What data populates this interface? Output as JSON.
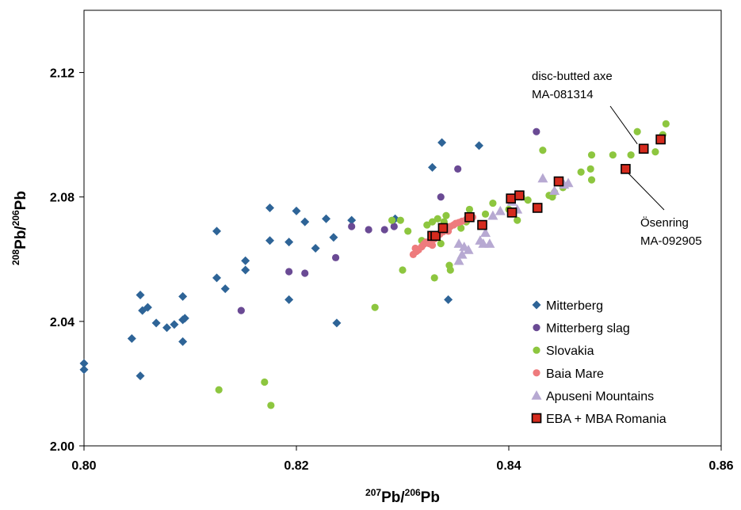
{
  "chart_data": {
    "type": "scatter",
    "xlabel": {
      "sup": "207",
      "main": "Pb/",
      "sup2": "206",
      "main2": "Pb"
    },
    "ylabel": {
      "sup": "208",
      "main": "Pb/",
      "sup2": "206",
      "main2": "Pb"
    },
    "xlim": [
      0.8,
      0.86
    ],
    "ylim": [
      2.0,
      2.14
    ],
    "xticks": [
      "0.80",
      "0.82",
      "0.84",
      "0.86"
    ],
    "yticks": [
      "2.00",
      "2.04",
      "2.08",
      "2.12"
    ],
    "grid": false,
    "legend_position": "bottom-right",
    "series": [
      {
        "name": "Mitterberg",
        "marker": "diamond",
        "color": "#2e6497",
        "points": [
          [
            0.8,
            2.0265
          ],
          [
            0.8,
            2.0245
          ],
          [
            0.8045,
            2.0345
          ],
          [
            0.8053,
            2.0485
          ],
          [
            0.8053,
            2.0225
          ],
          [
            0.8055,
            2.0435
          ],
          [
            0.806,
            2.0445
          ],
          [
            0.8068,
            2.0395
          ],
          [
            0.8078,
            2.038
          ],
          [
            0.8085,
            2.039
          ],
          [
            0.8093,
            2.048
          ],
          [
            0.8093,
            2.0405
          ],
          [
            0.8095,
            2.041
          ],
          [
            0.8093,
            2.0335
          ],
          [
            0.8125,
            2.069
          ],
          [
            0.8125,
            2.054
          ],
          [
            0.8133,
            2.0505
          ],
          [
            0.8152,
            2.0595
          ],
          [
            0.8152,
            2.0565
          ],
          [
            0.8175,
            2.0765
          ],
          [
            0.8175,
            2.066
          ],
          [
            0.8193,
            2.0655
          ],
          [
            0.8193,
            2.047
          ],
          [
            0.82,
            2.0755
          ],
          [
            0.8208,
            2.072
          ],
          [
            0.8218,
            2.0635
          ],
          [
            0.8228,
            2.073
          ],
          [
            0.8235,
            2.067
          ],
          [
            0.8238,
            2.0395
          ],
          [
            0.8252,
            2.0725
          ],
          [
            0.8293,
            2.073
          ],
          [
            0.8328,
            2.0895
          ],
          [
            0.8337,
            2.0975
          ],
          [
            0.8343,
            2.047
          ],
          [
            0.8372,
            2.0965
          ]
        ]
      },
      {
        "name": "Mitterberg slag",
        "marker": "circle",
        "color": "#6a4a94",
        "points": [
          [
            0.8148,
            2.0435
          ],
          [
            0.8193,
            2.056
          ],
          [
            0.8208,
            2.0555
          ],
          [
            0.8237,
            2.0605
          ],
          [
            0.8252,
            2.0705
          ],
          [
            0.8268,
            2.0695
          ],
          [
            0.8283,
            2.0695
          ],
          [
            0.8292,
            2.0705
          ],
          [
            0.8336,
            2.08
          ],
          [
            0.8352,
            2.089
          ],
          [
            0.8426,
            2.101
          ]
        ]
      },
      {
        "name": "Slovakia",
        "marker": "circle",
        "color": "#8dc63f",
        "points": [
          [
            0.8127,
            2.018
          ],
          [
            0.817,
            2.0205
          ],
          [
            0.8176,
            2.013
          ],
          [
            0.8274,
            2.0445
          ],
          [
            0.829,
            2.0725
          ],
          [
            0.8298,
            2.0725
          ],
          [
            0.83,
            2.0565
          ],
          [
            0.8305,
            2.069
          ],
          [
            0.8318,
            2.066
          ],
          [
            0.8323,
            2.071
          ],
          [
            0.8328,
            2.072
          ],
          [
            0.833,
            2.054
          ],
          [
            0.8333,
            2.073
          ],
          [
            0.8336,
            2.065
          ],
          [
            0.8339,
            2.072
          ],
          [
            0.8341,
            2.074
          ],
          [
            0.8344,
            2.058
          ],
          [
            0.8345,
            2.0565
          ],
          [
            0.8355,
            2.07
          ],
          [
            0.836,
            2.072
          ],
          [
            0.8363,
            2.076
          ],
          [
            0.8378,
            2.0745
          ],
          [
            0.8385,
            2.078
          ],
          [
            0.84,
            2.076
          ],
          [
            0.8408,
            2.0725
          ],
          [
            0.8412,
            2.08
          ],
          [
            0.8418,
            2.079
          ],
          [
            0.8432,
            2.095
          ],
          [
            0.8438,
            2.0805
          ],
          [
            0.8441,
            2.08
          ],
          [
            0.8443,
            2.0815
          ],
          [
            0.8448,
            2.0845
          ],
          [
            0.8451,
            2.083
          ],
          [
            0.8468,
            2.088
          ],
          [
            0.8477,
            2.089
          ],
          [
            0.8478,
            2.0935
          ],
          [
            0.8478,
            2.0855
          ],
          [
            0.8498,
            2.0935
          ],
          [
            0.8515,
            2.0935
          ],
          [
            0.8521,
            2.101
          ],
          [
            0.8538,
            2.0945
          ],
          [
            0.8545,
            2.1
          ],
          [
            0.8548,
            2.1035
          ]
        ]
      },
      {
        "name": "Baia Mare",
        "marker": "circle",
        "color": "#ee7b7d",
        "points": [
          [
            0.831,
            2.0615
          ],
          [
            0.8313,
            2.0625
          ],
          [
            0.8315,
            2.063
          ],
          [
            0.8318,
            2.064
          ],
          [
            0.832,
            2.0648
          ],
          [
            0.8322,
            2.0655
          ],
          [
            0.8325,
            2.065
          ],
          [
            0.8327,
            2.066
          ],
          [
            0.833,
            2.0665
          ],
          [
            0.8332,
            2.0672
          ],
          [
            0.8335,
            2.068
          ],
          [
            0.8338,
            2.0688
          ],
          [
            0.834,
            2.0695
          ],
          [
            0.8342,
            2.07
          ],
          [
            0.8345,
            2.0705
          ],
          [
            0.8348,
            2.071
          ],
          [
            0.835,
            2.0715
          ],
          [
            0.8353,
            2.0718
          ],
          [
            0.8356,
            2.0722
          ],
          [
            0.836,
            2.0728
          ],
          [
            0.8363,
            2.0732
          ],
          [
            0.8366,
            2.0735
          ],
          [
            0.8312,
            2.0635
          ],
          [
            0.8328,
            2.0645
          ],
          [
            0.8343,
            2.069
          ]
        ]
      },
      {
        "name": "Apuseni Mountains",
        "marker": "triangle",
        "color": "#b7a9d2",
        "points": [
          [
            0.8353,
            2.0595
          ],
          [
            0.8353,
            2.065
          ],
          [
            0.8356,
            2.0615
          ],
          [
            0.8358,
            2.064
          ],
          [
            0.8362,
            2.063
          ],
          [
            0.8373,
            2.066
          ],
          [
            0.8376,
            2.065
          ],
          [
            0.8378,
            2.0685
          ],
          [
            0.8382,
            2.065
          ],
          [
            0.8385,
            2.074
          ],
          [
            0.8392,
            2.0755
          ],
          [
            0.8403,
            2.0785
          ],
          [
            0.8408,
            2.076
          ],
          [
            0.8432,
            2.086
          ],
          [
            0.8443,
            2.082
          ],
          [
            0.8452,
            2.084
          ],
          [
            0.8456,
            2.0845
          ]
        ]
      },
      {
        "name": "EBA + MBA Romania",
        "marker": "square",
        "color": "#d52b1e",
        "points": [
          [
            0.8328,
            2.0675
          ],
          [
            0.8331,
            2.0675
          ],
          [
            0.8338,
            2.07
          ],
          [
            0.8363,
            2.0735
          ],
          [
            0.8375,
            2.071
          ],
          [
            0.8402,
            2.0795
          ],
          [
            0.8403,
            2.075
          ],
          [
            0.841,
            2.0805
          ],
          [
            0.8427,
            2.0765
          ],
          [
            0.8447,
            2.085
          ],
          [
            0.851,
            2.089
          ],
          [
            0.8527,
            2.0955
          ],
          [
            0.8543,
            2.0985
          ]
        ]
      }
    ],
    "annotations": [
      {
        "lines": [
          "disc-butted axe",
          "MA-081314"
        ],
        "target": [
          0.8527,
          2.0955
        ]
      },
      {
        "lines": [
          "Ösenring",
          "MA-092905"
        ],
        "target": [
          0.851,
          2.089
        ]
      }
    ]
  }
}
